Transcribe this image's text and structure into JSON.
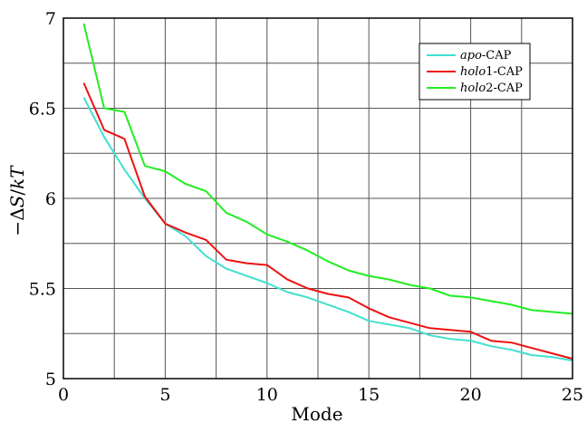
{
  "chart_data": {
    "type": "line",
    "xlabel": "Mode",
    "ylabel": {
      "prefix": "−Δ",
      "s": "S",
      "slash": "/",
      "kt": "kT"
    },
    "xlim": [
      0,
      25
    ],
    "ylim": [
      5,
      7
    ],
    "xticks": [
      0,
      5,
      10,
      15,
      20,
      25
    ],
    "yticks": [
      5,
      5.5,
      6,
      6.5,
      7
    ],
    "xtick_labels": [
      "0",
      "5",
      "10",
      "15",
      "20",
      "25"
    ],
    "ytick_labels": [
      "5",
      "5.5",
      "6",
      "6.5",
      "7"
    ],
    "grid": true,
    "legend_position": "top-right",
    "x": [
      1,
      2,
      3,
      4,
      5,
      6,
      7,
      8,
      9,
      10,
      11,
      12,
      13,
      14,
      15,
      16,
      17,
      18,
      19,
      20,
      21,
      22,
      23,
      24,
      25
    ],
    "series": [
      {
        "name": "apo-CAP",
        "name_italic": "apo",
        "name_rest": "-CAP",
        "color": "#40e0d0",
        "values": [
          6.56,
          6.34,
          6.16,
          6.0,
          5.86,
          5.79,
          5.68,
          5.61,
          5.57,
          5.53,
          5.48,
          5.45,
          5.41,
          5.37,
          5.32,
          5.3,
          5.28,
          5.24,
          5.22,
          5.21,
          5.18,
          5.16,
          5.13,
          5.12,
          5.1
        ]
      },
      {
        "name": "holo1-CAP",
        "name_italic": "holo",
        "name_rest": "1-CAP",
        "color": "#ee1111",
        "values": [
          6.64,
          6.38,
          6.33,
          6.01,
          5.86,
          5.81,
          5.77,
          5.66,
          5.64,
          5.63,
          5.55,
          5.5,
          5.47,
          5.45,
          5.39,
          5.34,
          5.31,
          5.28,
          5.27,
          5.26,
          5.21,
          5.2,
          5.17,
          5.14,
          5.11
        ]
      },
      {
        "name": "holo2-CAP",
        "name_italic": "holo",
        "name_rest": "2-CAP",
        "color": "#22ee22",
        "values": [
          6.97,
          6.5,
          6.48,
          6.18,
          6.15,
          6.08,
          6.04,
          5.92,
          5.87,
          5.8,
          5.76,
          5.71,
          5.65,
          5.6,
          5.57,
          5.55,
          5.52,
          5.5,
          5.46,
          5.45,
          5.43,
          5.41,
          5.38,
          5.37,
          5.36
        ]
      }
    ]
  }
}
